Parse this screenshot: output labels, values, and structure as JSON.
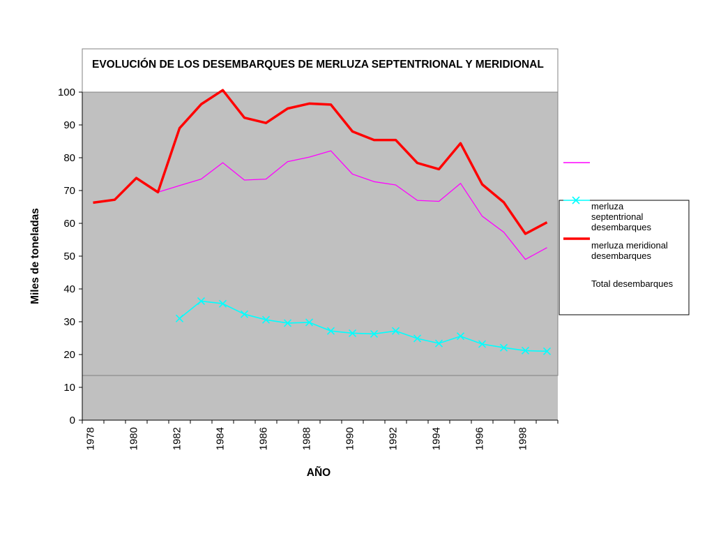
{
  "colors": {
    "plot_background": "#c0c0c0",
    "total": "#ff00ff",
    "septentrional": "#00ffff",
    "meridional": "#ff0000"
  },
  "chart_data": {
    "type": "line",
    "title": "EVOLUCIÓN DE LOS DESEMBARQUES DE MERLUZA SEPTENTRIONAL Y MERIDIONAL",
    "xlabel": "AÑO",
    "ylabel": "Miles de toneladas",
    "ylim": [
      0,
      100
    ],
    "yticks": [
      0,
      10,
      20,
      30,
      40,
      50,
      60,
      70,
      80,
      90,
      100
    ],
    "xtick_labels": [
      "1978",
      "1980",
      "1982",
      "1984",
      "1986",
      "1988",
      "1990",
      "1992",
      "1994",
      "1996",
      "1998"
    ],
    "x": [
      1978,
      1979,
      1980,
      1981,
      1982,
      1983,
      1984,
      1985,
      1986,
      1987,
      1988,
      1989,
      1990,
      1991,
      1992,
      1993,
      1994,
      1995,
      1996,
      1997,
      1998,
      1999
    ],
    "grid": false,
    "legend_position": "right",
    "legend_labels": [
      "merluza septentrional desembarques",
      "merluza meridional desembarques",
      "Total desembarques"
    ],
    "series": [
      {
        "id": "total",
        "values": [
          null,
          null,
          null,
          69.5,
          71.5,
          73.5,
          78.5,
          73.2,
          73.5,
          78.8,
          80.2,
          82.1,
          75,
          72.7,
          71.7,
          67,
          66.7,
          72.2,
          62.2,
          57.3,
          49,
          52.6
        ]
      },
      {
        "id": "septentrional",
        "values": [
          null,
          null,
          null,
          null,
          31,
          36.3,
          35.5,
          32.3,
          30.6,
          29.6,
          29.8,
          27.2,
          26.5,
          26.3,
          27.2,
          24.9,
          23.4,
          25.6,
          23.2,
          22.1,
          21.2,
          21
        ]
      },
      {
        "id": "meridional",
        "values": [
          66.3,
          67.2,
          73.8,
          69.5,
          89,
          96.3,
          100.6,
          92.2,
          90.6,
          95,
          96.5,
          96.2,
          88,
          85.4,
          85.4,
          78.4,
          76.5,
          84.4,
          71.9,
          66.4,
          56.8,
          60.3
        ]
      }
    ]
  }
}
